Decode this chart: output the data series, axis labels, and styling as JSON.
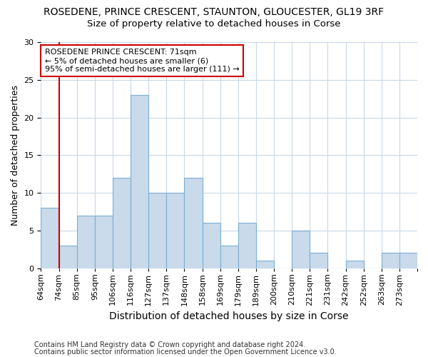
{
  "title1": "ROSEDENE, PRINCE CRESCENT, STAUNTON, GLOUCESTER, GL19 3RF",
  "title2": "Size of property relative to detached houses in Corse",
  "xlabel": "Distribution of detached houses by size in Corse",
  "ylabel": "Number of detached properties",
  "footnote1": "Contains HM Land Registry data © Crown copyright and database right 2024.",
  "footnote2": "Contains public sector information licensed under the Open Government Licence v3.0.",
  "bin_labels": [
    "64sqm",
    "74sqm",
    "85sqm",
    "95sqm",
    "106sqm",
    "116sqm",
    "127sqm",
    "137sqm",
    "148sqm",
    "158sqm",
    "169sqm",
    "179sqm",
    "189sqm",
    "200sqm",
    "210sqm",
    "221sqm",
    "231sqm",
    "242sqm",
    "252sqm",
    "263sqm",
    "273sqm"
  ],
  "bar_values": [
    8,
    3,
    7,
    7,
    12,
    23,
    10,
    10,
    12,
    6,
    3,
    6,
    1,
    0,
    5,
    2,
    0,
    1,
    0,
    2,
    2
  ],
  "bar_color": "#c9daea",
  "bar_edge_color": "#7bafd4",
  "annotation_text_line1": "ROSEDENE PRINCE CRESCENT: 71sqm",
  "annotation_text_line2": "← 5% of detached houses are smaller (6)",
  "annotation_text_line3": "95% of semi-detached houses are larger (111) →",
  "annotation_box_facecolor": "#ffffff",
  "annotation_box_edgecolor": "#cc0000",
  "vline_color": "#cc0000",
  "vline_x": 1.0,
  "ylim": [
    0,
    30
  ],
  "yticks": [
    0,
    5,
    10,
    15,
    20,
    25,
    30
  ],
  "background_color": "#ffffff",
  "grid_color": "#c8d8e8",
  "title1_fontsize": 10,
  "title2_fontsize": 9.5,
  "xlabel_fontsize": 10,
  "ylabel_fontsize": 9,
  "tick_fontsize": 8,
  "footnote_fontsize": 7
}
